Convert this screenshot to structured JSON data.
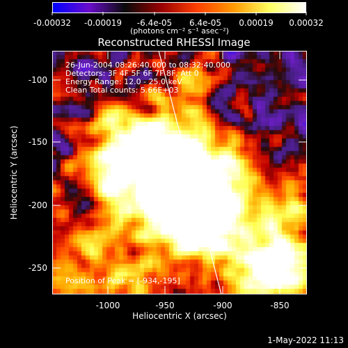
{
  "colorbar": {
    "tick_labels": [
      "-0.00032",
      "-0.00019",
      "-6.4e-05",
      "6.4e-05",
      "0.00019",
      "0.00032"
    ],
    "unit_text": "(photons cm⁻² s⁻¹ asec⁻²)",
    "range": [
      -0.00032,
      0.00032
    ],
    "colors": [
      "#0000ff",
      "#6a0dcc",
      "#0a0a0a",
      "#990000",
      "#ff4000",
      "#ff9900",
      "#ffff60",
      "#ffffff"
    ]
  },
  "title": "Reconstructed RHESSI Image",
  "info_lines": [
    "26-Jun-2004 08:26:40.000 to 08:32:40.000",
    "Detectors: 3F 4F 5F 6F 7F 8F, Att 0",
    "Energy Range: 12.0 - 25.0 keV",
    "Clean      Total counts: 5.66E+03"
  ],
  "peak_text": "Position of Peak = [-934,-195]",
  "axes": {
    "x_label": "Heliocentric X (arcsec)",
    "y_label": "Heliocentric Y (arcsec)",
    "x_ticks": [
      "-1000",
      "-950",
      "-900",
      "-850"
    ],
    "y_ticks": [
      "-100",
      "-150",
      "-200",
      "-250"
    ]
  },
  "footer_date": "1-May-2022 11:13"
}
